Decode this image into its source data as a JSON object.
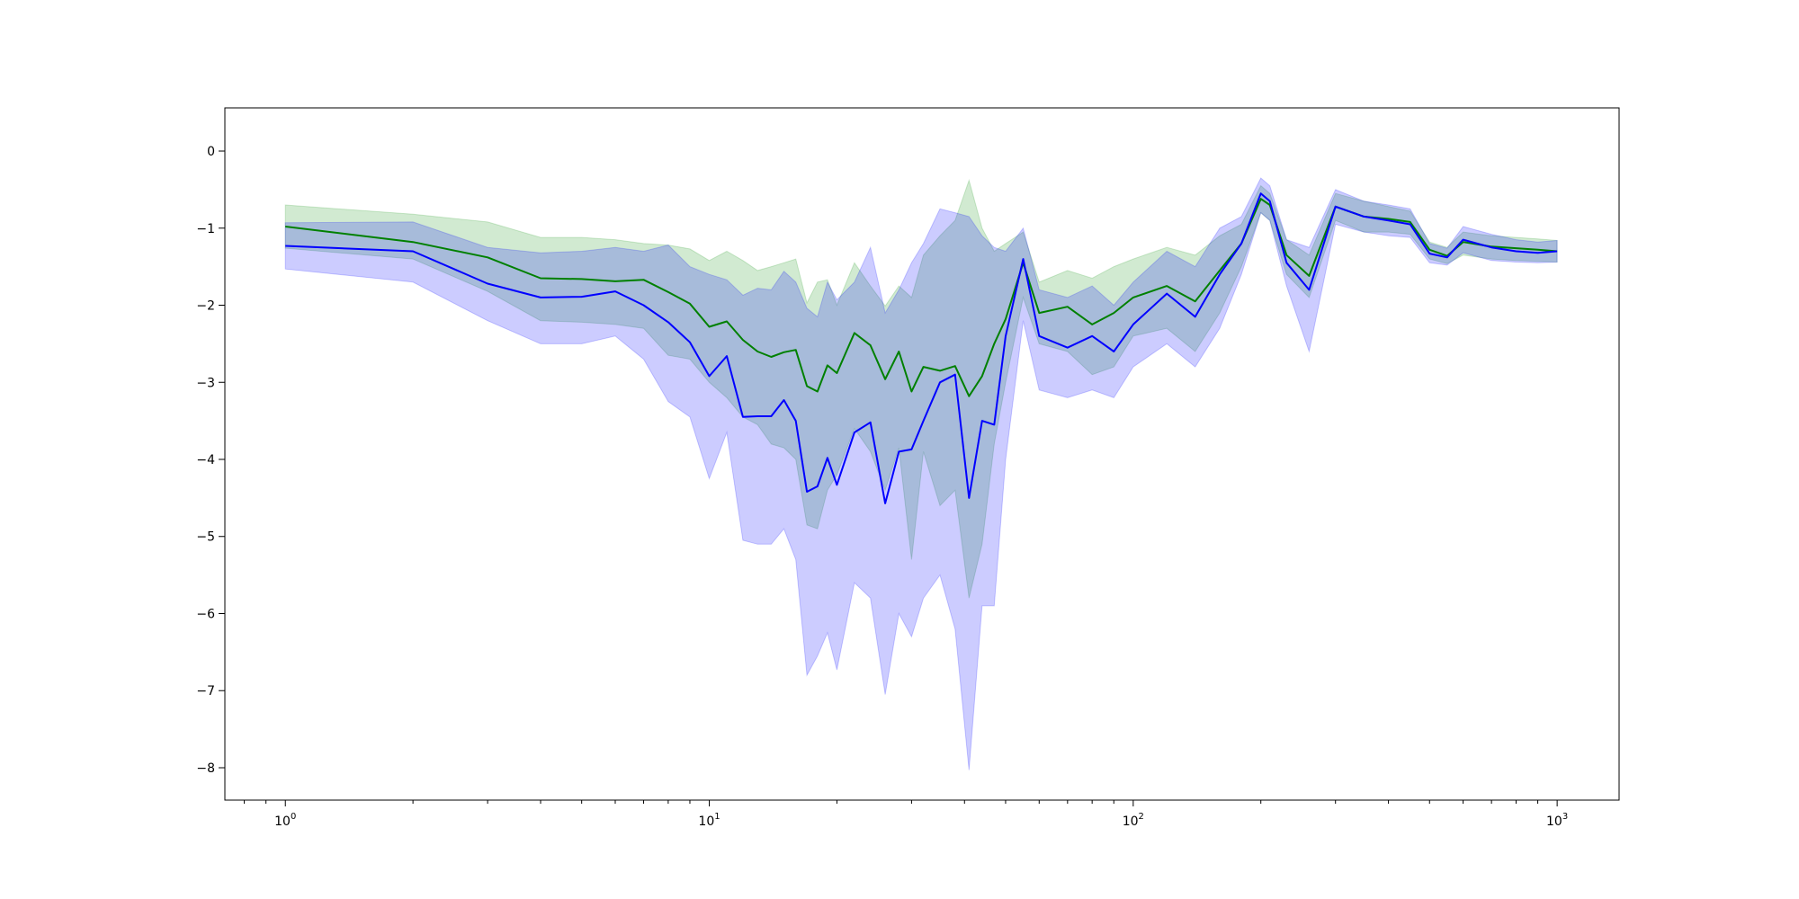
{
  "chart_data": {
    "type": "line",
    "title": "",
    "xlabel": "",
    "ylabel": "",
    "xscale": "log",
    "xlim": [
      0.72,
      1400
    ],
    "ylim": [
      -8.42,
      0.56
    ],
    "grid": false,
    "legend": "none",
    "x_ticks": [
      {
        "value": 1,
        "base": "10",
        "exp": "0"
      },
      {
        "value": 10,
        "base": "10",
        "exp": "1"
      },
      {
        "value": 100,
        "base": "10",
        "exp": "2"
      },
      {
        "value": 1000,
        "base": "10",
        "exp": "3"
      }
    ],
    "y_ticks": [
      {
        "value": 0,
        "label": "0"
      },
      {
        "value": -1,
        "label": "−1"
      },
      {
        "value": -2,
        "label": "−2"
      },
      {
        "value": -3,
        "label": "−3"
      },
      {
        "value": -4,
        "label": "−4"
      },
      {
        "value": -5,
        "label": "−5"
      },
      {
        "value": -6,
        "label": "−6"
      },
      {
        "value": -7,
        "label": "−7"
      },
      {
        "value": -8,
        "label": "−8"
      }
    ],
    "series": [
      {
        "color": "#008000",
        "band_color": "#2ca02c",
        "band_opacity": 0.22,
        "x": [
          1,
          2,
          3,
          4,
          5,
          6,
          7,
          8,
          9,
          10,
          11,
          12,
          13,
          14,
          15,
          16,
          17,
          18,
          19,
          20,
          22,
          24,
          26,
          28,
          30,
          32,
          35,
          38,
          41,
          44,
          47,
          50,
          55,
          60,
          70,
          80,
          90,
          100,
          120,
          140,
          160,
          180,
          200,
          210,
          230,
          260,
          300,
          350,
          400,
          450,
          500,
          550,
          600,
          700,
          800,
          900,
          1000
        ],
        "y": [
          -0.98,
          -1.18,
          -1.38,
          -1.65,
          -1.66,
          -1.69,
          -1.67,
          -1.83,
          -1.98,
          -2.28,
          -2.21,
          -2.45,
          -2.6,
          -2.67,
          -2.61,
          -2.58,
          -3.05,
          -3.12,
          -2.78,
          -2.88,
          -2.36,
          -2.52,
          -2.96,
          -2.6,
          -3.12,
          -2.8,
          -2.85,
          -2.79,
          -3.18,
          -2.92,
          -2.5,
          -2.18,
          -1.45,
          -2.1,
          -2.02,
          -2.25,
          -2.1,
          -1.9,
          -1.75,
          -1.95,
          -1.55,
          -1.2,
          -0.62,
          -0.7,
          -1.35,
          -1.62,
          -0.72,
          -0.85,
          -0.88,
          -0.92,
          -1.28,
          -1.36,
          -1.18,
          -1.24,
          -1.26,
          -1.28,
          -1.3
        ],
        "lower": [
          -1.26,
          -1.4,
          -1.82,
          -2.2,
          -2.22,
          -2.25,
          -2.3,
          -2.65,
          -2.7,
          -3.0,
          -3.2,
          -3.45,
          -3.55,
          -3.8,
          -3.85,
          -4.0,
          -4.85,
          -4.9,
          -4.4,
          -4.2,
          -3.6,
          -3.9,
          -4.4,
          -3.85,
          -5.3,
          -3.9,
          -4.6,
          -4.4,
          -5.8,
          -5.1,
          -3.8,
          -3.0,
          -1.9,
          -2.5,
          -2.6,
          -2.9,
          -2.8,
          -2.4,
          -2.3,
          -2.6,
          -2.1,
          -1.5,
          -0.8,
          -0.9,
          -1.6,
          -1.9,
          -0.9,
          -1.05,
          -1.05,
          -1.08,
          -1.4,
          -1.46,
          -1.35,
          -1.4,
          -1.42,
          -1.43,
          -1.44
        ],
        "upper": [
          -0.7,
          -0.82,
          -0.92,
          -1.12,
          -1.12,
          -1.15,
          -1.2,
          -1.22,
          -1.27,
          -1.42,
          -1.3,
          -1.42,
          -1.55,
          -1.5,
          -1.45,
          -1.4,
          -1.97,
          -1.7,
          -1.67,
          -2.0,
          -1.45,
          -1.75,
          -2.01,
          -1.75,
          -1.9,
          -1.35,
          -1.1,
          -0.9,
          -0.38,
          -1.0,
          -1.3,
          -1.2,
          -1.05,
          -1.7,
          -1.55,
          -1.65,
          -1.5,
          -1.4,
          -1.25,
          -1.35,
          -1.1,
          -0.95,
          -0.45,
          -0.55,
          -1.15,
          -1.35,
          -0.55,
          -0.65,
          -0.72,
          -0.78,
          -1.18,
          -1.25,
          -1.05,
          -1.1,
          -1.12,
          -1.14,
          -1.16
        ]
      },
      {
        "color": "#0000ff",
        "band_color": "#0000ff",
        "band_opacity": 0.2,
        "x": [
          1,
          2,
          3,
          4,
          5,
          6,
          7,
          8,
          9,
          10,
          11,
          12,
          13,
          14,
          15,
          16,
          17,
          18,
          19,
          20,
          22,
          24,
          26,
          28,
          30,
          32,
          35,
          38,
          41,
          44,
          47,
          50,
          55,
          60,
          70,
          80,
          90,
          100,
          120,
          140,
          160,
          180,
          200,
          210,
          230,
          260,
          300,
          350,
          400,
          450,
          500,
          550,
          600,
          700,
          800,
          900,
          1000
        ],
        "y": [
          -1.23,
          -1.3,
          -1.72,
          -1.9,
          -1.89,
          -1.82,
          -2.0,
          -2.22,
          -2.48,
          -2.92,
          -2.66,
          -3.45,
          -3.44,
          -3.44,
          -3.23,
          -3.5,
          -4.42,
          -4.35,
          -3.98,
          -4.33,
          -3.65,
          -3.52,
          -4.57,
          -3.9,
          -3.87,
          -3.5,
          -3.0,
          -2.9,
          -4.5,
          -3.5,
          -3.55,
          -2.4,
          -1.4,
          -2.4,
          -2.55,
          -2.4,
          -2.6,
          -2.25,
          -1.85,
          -2.15,
          -1.6,
          -1.2,
          -0.55,
          -0.65,
          -1.45,
          -1.8,
          -0.72,
          -0.85,
          -0.9,
          -0.95,
          -1.33,
          -1.38,
          -1.15,
          -1.25,
          -1.3,
          -1.32,
          -1.3
        ],
        "lower": [
          -1.53,
          -1.7,
          -2.2,
          -2.5,
          -2.5,
          -2.4,
          -2.7,
          -3.25,
          -3.45,
          -4.25,
          -3.65,
          -5.05,
          -5.1,
          -5.1,
          -4.9,
          -5.3,
          -6.8,
          -6.55,
          -6.25,
          -6.73,
          -5.6,
          -5.8,
          -7.05,
          -6.0,
          -6.3,
          -5.8,
          -5.5,
          -6.2,
          -8.03,
          -5.9,
          -5.9,
          -4.0,
          -2.2,
          -3.1,
          -3.2,
          -3.1,
          -3.2,
          -2.8,
          -2.5,
          -2.8,
          -2.3,
          -1.6,
          -0.8,
          -0.9,
          -1.75,
          -2.6,
          -0.95,
          -1.05,
          -1.1,
          -1.12,
          -1.45,
          -1.48,
          -1.32,
          -1.42,
          -1.44,
          -1.45,
          -1.44
        ],
        "upper": [
          -0.93,
          -0.92,
          -1.25,
          -1.32,
          -1.3,
          -1.25,
          -1.3,
          -1.22,
          -1.5,
          -1.6,
          -1.67,
          -1.87,
          -1.78,
          -1.8,
          -1.56,
          -1.7,
          -2.04,
          -2.15,
          -1.7,
          -1.93,
          -1.7,
          -1.25,
          -2.1,
          -1.8,
          -1.45,
          -1.2,
          -0.75,
          -0.8,
          -0.85,
          -1.1,
          -1.25,
          -1.3,
          -1.0,
          -1.8,
          -1.9,
          -1.75,
          -2.0,
          -1.7,
          -1.3,
          -1.5,
          -1.0,
          -0.85,
          -0.35,
          -0.45,
          -1.15,
          -1.25,
          -0.5,
          -0.65,
          -0.7,
          -0.75,
          -1.2,
          -1.26,
          -0.98,
          -1.08,
          -1.15,
          -1.18,
          -1.16
        ]
      }
    ]
  }
}
